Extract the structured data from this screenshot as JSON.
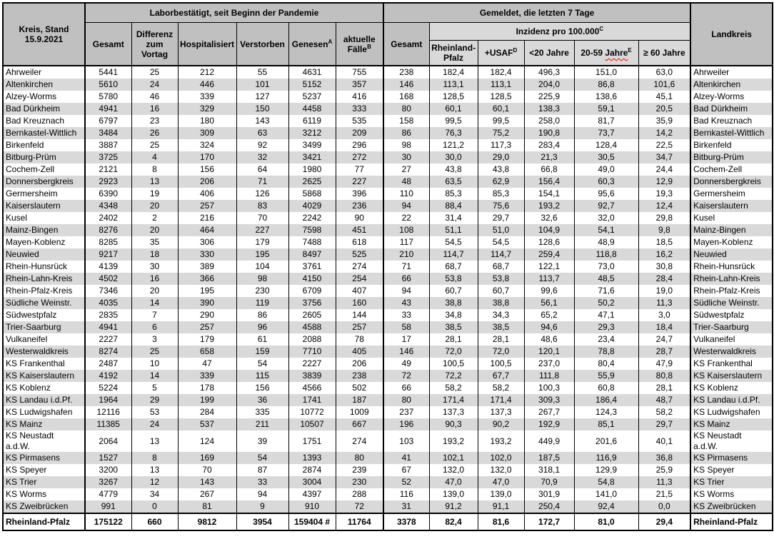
{
  "colors": {
    "header_gray": "#c0c0c0",
    "subheader_gray": "#d9d9d9",
    "stripe_gray": "#d9d9d9",
    "border": "#000000",
    "spellcheck_squiggle": "#ff0000",
    "text": "#000000"
  },
  "header": {
    "corner": "Kreis, Stand\n15.9.2021",
    "lab_group": "Laborbestätigt, seit Beginn der Pandemie",
    "week_group": "Gemeldet, die letzten 7 Tage",
    "landkreis": "Landkreis",
    "lab_cols": [
      {
        "text": "Gesamt",
        "sup": ""
      },
      {
        "text": "Differenz zum Vortag",
        "sup": ""
      },
      {
        "text": "Hospitalisiert",
        "sup": ""
      },
      {
        "text": "Verstorben",
        "sup": ""
      },
      {
        "text": "Genesen",
        "sup": "A"
      },
      {
        "text": "aktuelle Fälle",
        "sup": "B"
      }
    ],
    "week_gesamt": "Gesamt",
    "inzidenz": {
      "text": "Inzidenz pro 100.000",
      "sup": "C"
    },
    "inzidenz_cols": [
      {
        "text": "Rheinland-Pfalz",
        "sup": ""
      },
      {
        "text": "+USAF",
        "sup": "D"
      },
      {
        "text": "<20 Jahre",
        "sup": ""
      },
      {
        "prefix": "20-59 ",
        "wavy": "Jahre",
        "sup": "E"
      },
      {
        "text": "≥ 60 Jahre",
        "sup": ""
      }
    ]
  },
  "rows": [
    {
      "kreis": "Ahrweiler",
      "values": [
        "5441",
        "25",
        "212",
        "55",
        "4631",
        "755",
        "238",
        "182,4",
        "182,4",
        "496,3",
        "151,0",
        "63,0"
      ],
      "landkreis": "Ahrweiler"
    },
    {
      "kreis": "Altenkirchen",
      "values": [
        "5610",
        "24",
        "446",
        "101",
        "5152",
        "357",
        "146",
        "113,1",
        "113,1",
        "204,0",
        "86,8",
        "101,6"
      ],
      "landkreis": "Altenkirchen"
    },
    {
      "kreis": "Alzey-Worms",
      "values": [
        "5780",
        "46",
        "339",
        "127",
        "5237",
        "416",
        "168",
        "128,5",
        "128,5",
        "225,9",
        "138,6",
        "45,1"
      ],
      "landkreis": "Alzey-Worms"
    },
    {
      "kreis": "Bad Dürkheim",
      "values": [
        "4941",
        "16",
        "329",
        "150",
        "4458",
        "333",
        "80",
        "60,1",
        "60,1",
        "138,3",
        "59,1",
        "20,5"
      ],
      "landkreis": "Bad Dürkheim"
    },
    {
      "kreis": "Bad Kreuznach",
      "values": [
        "6797",
        "23",
        "180",
        "143",
        "6119",
        "535",
        "158",
        "99,5",
        "99,5",
        "258,0",
        "81,7",
        "35,9"
      ],
      "landkreis": "Bad Kreuznach"
    },
    {
      "kreis": "Bernkastel-Wittlich",
      "values": [
        "3484",
        "26",
        "309",
        "63",
        "3212",
        "209",
        "86",
        "76,3",
        "75,2",
        "190,8",
        "73,7",
        "14,2"
      ],
      "landkreis": "Bernkastel-Wittlich"
    },
    {
      "kreis": "Birkenfeld",
      "values": [
        "3887",
        "25",
        "324",
        "92",
        "3499",
        "296",
        "98",
        "121,2",
        "117,3",
        "283,4",
        "128,4",
        "22,5"
      ],
      "landkreis": "Birkenfeld"
    },
    {
      "kreis": "Bitburg-Prüm",
      "values": [
        "3725",
        "4",
        "170",
        "32",
        "3421",
        "272",
        "30",
        "30,0",
        "29,0",
        "21,3",
        "30,5",
        "34,7"
      ],
      "landkreis": "Bitburg-Prüm"
    },
    {
      "kreis": "Cochem-Zell",
      "values": [
        "2121",
        "8",
        "156",
        "64",
        "1980",
        "77",
        "27",
        "43,8",
        "43,8",
        "66,8",
        "49,0",
        "24,4"
      ],
      "landkreis": "Cochem-Zell"
    },
    {
      "kreis": "Donnersbergkreis",
      "values": [
        "2923",
        "13",
        "206",
        "71",
        "2625",
        "227",
        "48",
        "63,5",
        "62,9",
        "156,4",
        "60,3",
        "12,9"
      ],
      "landkreis": "Donnersbergkreis"
    },
    {
      "kreis": "Germersheim",
      "values": [
        "6390",
        "19",
        "406",
        "126",
        "5868",
        "396",
        "110",
        "85,3",
        "85,3",
        "154,1",
        "95,6",
        "19,3"
      ],
      "landkreis": "Germersheim"
    },
    {
      "kreis": "Kaiserslautern",
      "values": [
        "4348",
        "20",
        "257",
        "83",
        "4029",
        "236",
        "94",
        "88,4",
        "75,6",
        "193,2",
        "92,7",
        "12,4"
      ],
      "landkreis": "Kaiserslautern"
    },
    {
      "kreis": "Kusel",
      "values": [
        "2402",
        "2",
        "216",
        "70",
        "2242",
        "90",
        "22",
        "31,4",
        "29,7",
        "32,6",
        "32,0",
        "29,8"
      ],
      "landkreis": "Kusel"
    },
    {
      "kreis": "Mainz-Bingen",
      "values": [
        "8276",
        "20",
        "464",
        "227",
        "7598",
        "451",
        "108",
        "51,1",
        "51,0",
        "104,9",
        "54,1",
        "9,8"
      ],
      "landkreis": "Mainz-Bingen"
    },
    {
      "kreis": "Mayen-Koblenz",
      "values": [
        "8285",
        "35",
        "306",
        "179",
        "7488",
        "618",
        "117",
        "54,5",
        "54,5",
        "128,6",
        "48,9",
        "18,5"
      ],
      "landkreis": "Mayen-Koblenz"
    },
    {
      "kreis": "Neuwied",
      "values": [
        "9217",
        "18",
        "330",
        "195",
        "8497",
        "525",
        "210",
        "114,7",
        "114,7",
        "259,4",
        "118,8",
        "16,2"
      ],
      "landkreis": "Neuwied"
    },
    {
      "kreis": "Rhein-Hunsrück",
      "values": [
        "4139",
        "30",
        "389",
        "104",
        "3761",
        "274",
        "71",
        "68,7",
        "68,7",
        "122,1",
        "73,0",
        "30,8"
      ],
      "landkreis": "Rhein-Hunsrück"
    },
    {
      "kreis": "Rhein-Lahn-Kreis",
      "values": [
        "4502",
        "16",
        "366",
        "98",
        "4150",
        "254",
        "66",
        "53,8",
        "53,8",
        "113,7",
        "48,5",
        "28,4"
      ],
      "landkreis": "Rhein-Lahn-Kreis"
    },
    {
      "kreis": "Rhein-Pfalz-Kreis",
      "values": [
        "7346",
        "20",
        "195",
        "230",
        "6709",
        "407",
        "94",
        "60,7",
        "60,7",
        "99,6",
        "71,6",
        "19,0"
      ],
      "landkreis": "Rhein-Pfalz-Kreis"
    },
    {
      "kreis": "Südliche Weinstr.",
      "values": [
        "4035",
        "14",
        "390",
        "119",
        "3756",
        "160",
        "43",
        "38,8",
        "38,8",
        "56,1",
        "50,2",
        "11,3"
      ],
      "landkreis": "Südliche Weinstr."
    },
    {
      "kreis": "Südwestpfalz",
      "values": [
        "2835",
        "7",
        "290",
        "86",
        "2605",
        "144",
        "33",
        "34,8",
        "34,3",
        "65,2",
        "47,1",
        "3,0"
      ],
      "landkreis": "Südwestpfalz"
    },
    {
      "kreis": "Trier-Saarburg",
      "values": [
        "4941",
        "6",
        "257",
        "96",
        "4588",
        "257",
        "58",
        "38,5",
        "38,5",
        "94,6",
        "29,3",
        "18,4"
      ],
      "landkreis": "Trier-Saarburg"
    },
    {
      "kreis": "Vulkaneifel",
      "values": [
        "2227",
        "3",
        "179",
        "61",
        "2088",
        "78",
        "17",
        "28,1",
        "28,1",
        "48,6",
        "23,4",
        "24,7"
      ],
      "landkreis": "Vulkaneifel"
    },
    {
      "kreis": "Westerwaldkreis",
      "values": [
        "8274",
        "25",
        "658",
        "159",
        "7710",
        "405",
        "146",
        "72,0",
        "72,0",
        "120,1",
        "78,8",
        "28,7"
      ],
      "landkreis": "Westerwaldkreis"
    },
    {
      "kreis": "KS Frankenthal",
      "values": [
        "2487",
        "10",
        "47",
        "54",
        "2227",
        "206",
        "49",
        "100,5",
        "100,5",
        "237,0",
        "80,4",
        "47,9"
      ],
      "landkreis": "KS Frankenthal"
    },
    {
      "kreis": "KS Kaiserslautern",
      "values": [
        "4192",
        "14",
        "339",
        "115",
        "3839",
        "238",
        "72",
        "72,2",
        "67,7",
        "111,8",
        "55,9",
        "80,8"
      ],
      "landkreis": "KS Kaiserslautern"
    },
    {
      "kreis": "KS Koblenz",
      "values": [
        "5224",
        "5",
        "178",
        "156",
        "4566",
        "502",
        "66",
        "58,2",
        "58,2",
        "100,3",
        "60,8",
        "28,1"
      ],
      "landkreis": "KS Koblenz"
    },
    {
      "kreis": "KS Landau i.d.Pf.",
      "values": [
        "1964",
        "29",
        "199",
        "36",
        "1741",
        "187",
        "80",
        "171,4",
        "171,4",
        "309,3",
        "186,4",
        "48,7"
      ],
      "landkreis": "KS Landau i.d.Pf."
    },
    {
      "kreis": "KS Ludwigshafen",
      "values": [
        "12116",
        "53",
        "284",
        "335",
        "10772",
        "1009",
        "237",
        "137,3",
        "137,3",
        "267,7",
        "124,3",
        "58,2"
      ],
      "landkreis": "KS Ludwigshafen"
    },
    {
      "kreis": "KS Mainz",
      "values": [
        "11385",
        "24",
        "537",
        "211",
        "10507",
        "667",
        "196",
        "90,3",
        "90,2",
        "192,9",
        "85,1",
        "29,7"
      ],
      "landkreis": "KS Mainz"
    },
    {
      "kreis": "KS Neustadt\na.d.W.",
      "values": [
        "2064",
        "13",
        "124",
        "39",
        "1751",
        "274",
        "103",
        "193,2",
        "193,2",
        "449,9",
        "201,6",
        "40,1"
      ],
      "landkreis": "KS Neustadt\na.d.W."
    },
    {
      "kreis": "KS Pirmasens",
      "values": [
        "1527",
        "8",
        "169",
        "54",
        "1393",
        "80",
        "41",
        "102,1",
        "102,0",
        "187,5",
        "116,9",
        "36,8"
      ],
      "landkreis": "KS Pirmasens"
    },
    {
      "kreis": "KS Speyer",
      "values": [
        "3200",
        "13",
        "70",
        "87",
        "2874",
        "239",
        "67",
        "132,0",
        "132,0",
        "318,1",
        "129,9",
        "25,9"
      ],
      "landkreis": "KS Speyer"
    },
    {
      "kreis": "KS Trier",
      "values": [
        "3267",
        "12",
        "143",
        "33",
        "3004",
        "230",
        "52",
        "47,0",
        "47,0",
        "70,9",
        "54,8",
        "11,3"
      ],
      "landkreis": "KS Trier"
    },
    {
      "kreis": "KS Worms",
      "values": [
        "4779",
        "34",
        "267",
        "94",
        "4397",
        "288",
        "116",
        "139,0",
        "139,0",
        "301,9",
        "141,0",
        "21,5"
      ],
      "landkreis": "KS Worms"
    },
    {
      "kreis": "KS Zweibrücken",
      "values": [
        "991",
        "0",
        "81",
        "9",
        "910",
        "72",
        "31",
        "91,2",
        "91,1",
        "250,4",
        "92,4",
        "0,0"
      ],
      "landkreis": "KS Zweibrücken"
    }
  ],
  "total": {
    "kreis": "Rheinland-Pfalz",
    "values": [
      "175122",
      "660",
      "9812",
      "3954",
      "159404 #",
      "11764",
      "3378",
      "82,4",
      "81,6",
      "172,7",
      "81,0",
      "29,4"
    ],
    "landkreis": "Rheinland-Pfalz"
  }
}
